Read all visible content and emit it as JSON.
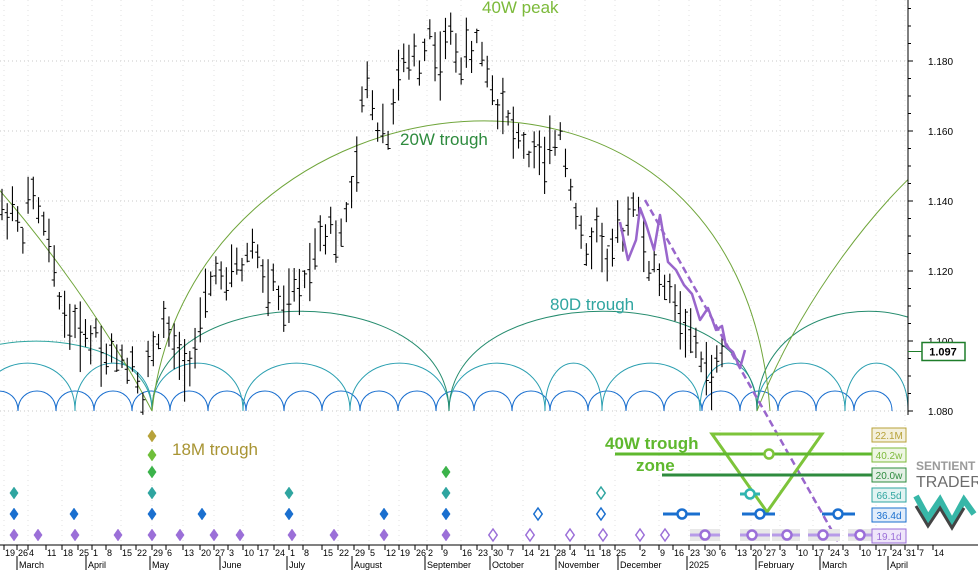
{
  "chart_data": {
    "type": "line",
    "y_axis": {
      "range": [
        1.074,
        1.195
      ],
      "ticks": [
        "1.080",
        "1.100",
        "1.120",
        "1.140",
        "1.160",
        "1.180"
      ],
      "current_price": "1.097",
      "position": "right",
      "grid": true
    },
    "x_axis": {
      "day_labels": [
        "19",
        "26",
        "4",
        "11",
        "18",
        "25",
        "1",
        "8",
        "15",
        "22",
        "29",
        "6",
        "13",
        "20",
        "27",
        "3",
        "10",
        "17",
        "24",
        "1",
        "8",
        "15",
        "22",
        "29",
        "5",
        "12",
        "19",
        "26",
        "2",
        "9",
        "16",
        "23",
        "30",
        "7",
        "14",
        "21",
        "28",
        "4",
        "11",
        "18",
        "25",
        "2",
        "9",
        "16",
        "23",
        "30",
        "6",
        "13",
        "20",
        "27",
        "3",
        "10",
        "17",
        "24",
        "3",
        "10",
        "17",
        "24",
        "31",
        "7",
        "14"
      ],
      "month_labels": [
        "March",
        "April",
        "May",
        "June",
        "July",
        "August",
        "September",
        "October",
        "November",
        "December",
        "2025",
        "February",
        "March",
        "April"
      ],
      "grid": true
    },
    "annotations": {
      "peak_40w": "40W peak",
      "trough_20w": "20W trough",
      "trough_80d": "80D trough",
      "trough_18m": "18M trough",
      "trough_zone_line1": "40W trough",
      "trough_zone_line2": "zone"
    },
    "cycle_labels": [
      "22.1M",
      "40.2w",
      "20.0w",
      "66.5d",
      "36.4d",
      "19.1d"
    ],
    "logo": {
      "line1": "SENTIENT",
      "line2": "TRADER"
    },
    "price_series": [
      1.138,
      1.136,
      1.139,
      1.134,
      1.13,
      1.14,
      1.142,
      1.137,
      1.133,
      1.128,
      1.12,
      1.112,
      1.108,
      1.104,
      1.106,
      1.101,
      1.103,
      1.099,
      1.104,
      1.097,
      1.095,
      1.098,
      1.094,
      1.096,
      1.092,
      1.095,
      1.089,
      1.082,
      1.094,
      1.098,
      1.1,
      1.106,
      1.102,
      1.098,
      1.096,
      1.093,
      1.094,
      1.098,
      1.104,
      1.112,
      1.116,
      1.121,
      1.118,
      1.115,
      1.12,
      1.123,
      1.12,
      1.125,
      1.128,
      1.124,
      1.119,
      1.114,
      1.118,
      1.112,
      1.108,
      1.112,
      1.115,
      1.114,
      1.118,
      1.121,
      1.126,
      1.132,
      1.13,
      1.135,
      1.128,
      1.13,
      1.137,
      1.142,
      1.15,
      1.168,
      1.174,
      1.168,
      1.16,
      1.163,
      1.157,
      1.168,
      1.175,
      1.18,
      1.178,
      1.183,
      1.177,
      1.184,
      1.189,
      1.182,
      1.179,
      1.186,
      1.188,
      1.183,
      1.178,
      1.184,
      1.181,
      1.187,
      1.182,
      1.177,
      1.172,
      1.166,
      1.169,
      1.164,
      1.16,
      1.158,
      1.156,
      1.152,
      1.155,
      1.153,
      1.15,
      1.155,
      1.157,
      1.16,
      1.152,
      1.144,
      1.136,
      1.13,
      1.124,
      1.128,
      1.133,
      1.128,
      1.122,
      1.126,
      1.132,
      1.13,
      1.136,
      1.14,
      1.137,
      1.127,
      1.12,
      1.122,
      1.118,
      1.114,
      1.116,
      1.111,
      1.106,
      1.104,
      1.101,
      1.099,
      1.094,
      1.092,
      1.089,
      1.094,
      1.097
    ],
    "forecast_line": [
      {
        "date": "Nov 18",
        "price": 1.138
      },
      {
        "date": "Nov 25",
        "price": 1.131
      },
      {
        "date": "Nov 28",
        "price": 1.123
      },
      {
        "date": "Dec 4",
        "price": 1.135
      },
      {
        "date": "Dec 9",
        "price": 1.141
      },
      {
        "date": "Dec 13",
        "price": 1.132
      },
      {
        "date": "Dec 18",
        "price": 1.119
      },
      {
        "date": "Dec 24",
        "price": 1.113
      },
      {
        "date": "Dec 31",
        "price": 1.105
      },
      {
        "date": "Jan 3",
        "price": 1.103
      },
      {
        "date": "Jan 7",
        "price": 1.096
      },
      {
        "date": "Jan 10",
        "price": 1.104
      },
      {
        "date": "Jan 14",
        "price": 1.097
      },
      {
        "date": "Jan 17",
        "price": 1.102
      },
      {
        "date": "Jan 21",
        "price": 1.092
      },
      {
        "date": "Jan 24",
        "price": 1.099
      },
      {
        "date": "Jan 28",
        "price": 1.094
      }
    ],
    "trend_line": [
      {
        "date": "Dec 9",
        "price": 1.14
      },
      {
        "date": "Feb 24",
        "price": 1.062
      }
    ],
    "colors": {
      "40w": "#7cba3a",
      "20w": "#2e8b3e",
      "80d": "#2fa5a0",
      "40d": "#1a6fcf",
      "20d": "#9b6fd8",
      "18m": "#b7a23a",
      "price": "#000000",
      "forecast": "#9966cc",
      "grid": "#c8c8c8"
    }
  }
}
